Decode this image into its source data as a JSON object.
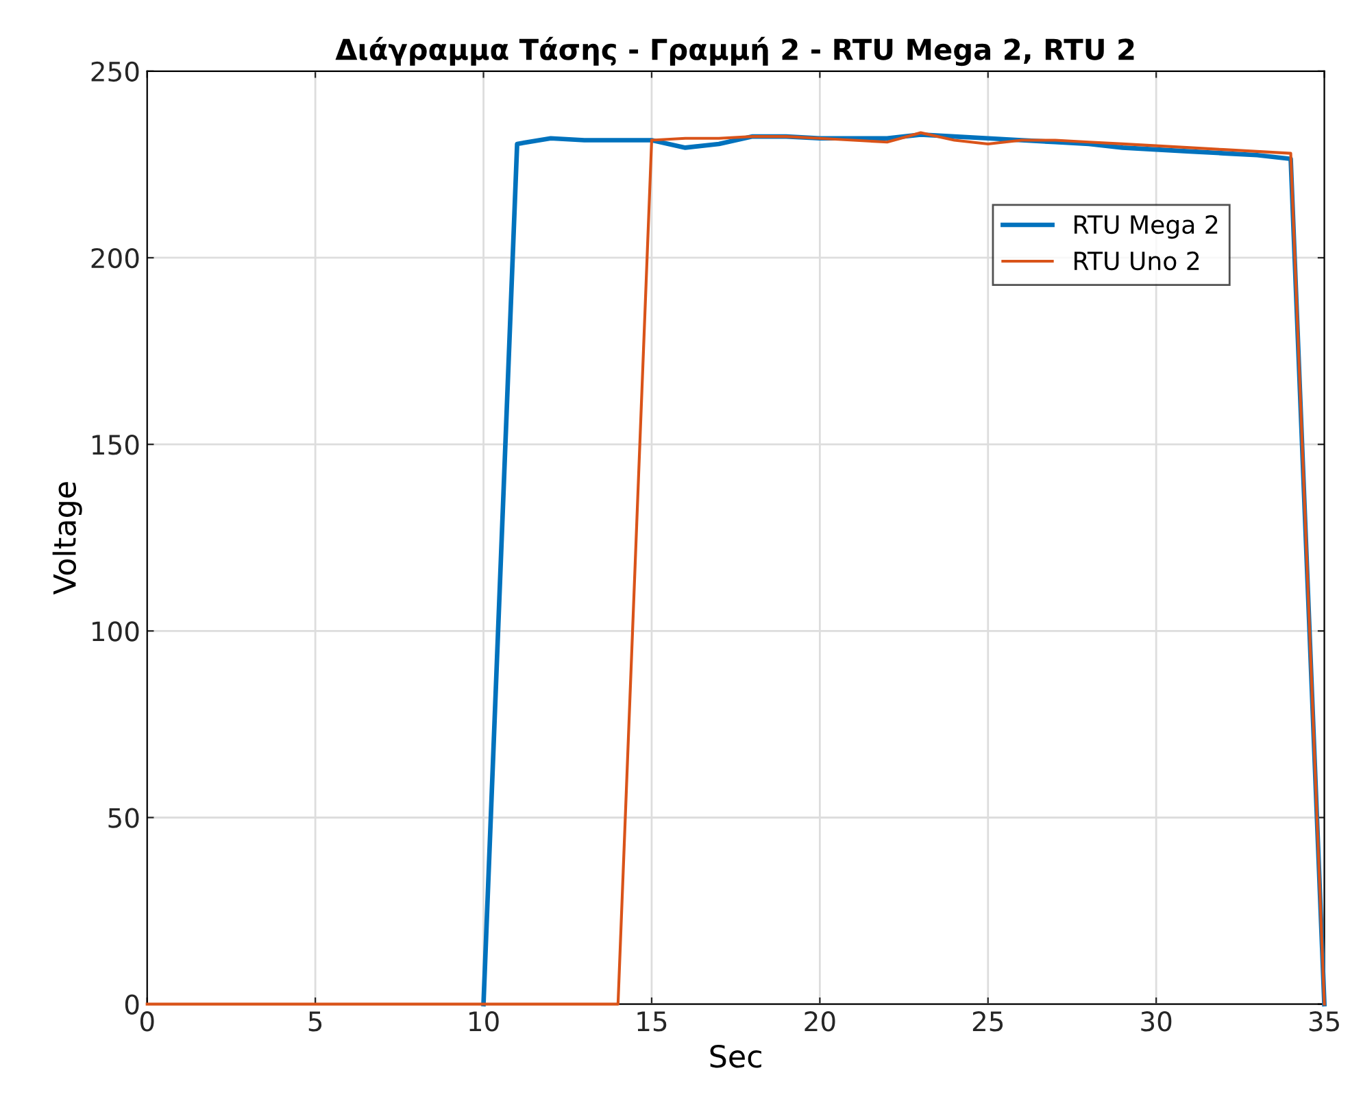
{
  "chart_data": {
    "type": "line",
    "title": "Διάγραμμα Τάσης - Γραμμή 2 - RTU Mega 2, RTU 2",
    "xlabel": "Sec",
    "ylabel": "Voltage",
    "x": [
      0,
      1,
      2,
      3,
      4,
      5,
      6,
      7,
      8,
      9,
      10,
      11,
      12,
      13,
      14,
      15,
      16,
      17,
      18,
      19,
      20,
      21,
      22,
      23,
      24,
      25,
      26,
      27,
      28,
      29,
      30,
      31,
      32,
      33,
      34,
      35
    ],
    "series": [
      {
        "name": "RTU Mega 2",
        "color": "#0072bd",
        "values": [
          null,
          null,
          null,
          null,
          null,
          null,
          null,
          null,
          null,
          null,
          0,
          230.5,
          232,
          231.5,
          231.5,
          231.5,
          229.5,
          230.5,
          232.5,
          232.5,
          232,
          232,
          232,
          233,
          232.5,
          232,
          231.5,
          231,
          230.5,
          229.5,
          229,
          228.5,
          228,
          227.5,
          226.5,
          0
        ]
      },
      {
        "name": "RTU Uno 2",
        "color": "#d95319",
        "values": [
          0,
          0,
          0,
          0,
          0,
          0,
          0,
          0,
          0,
          0,
          0,
          0,
          0,
          0,
          0,
          231.5,
          232,
          232,
          232.5,
          232.5,
          232,
          231.5,
          231,
          233.5,
          231.5,
          230.5,
          231.5,
          231.5,
          231,
          230.5,
          230,
          229.5,
          229,
          228.5,
          228,
          0
        ]
      }
    ],
    "xlim": [
      0,
      35
    ],
    "xticks": [
      0,
      5,
      10,
      15,
      20,
      25,
      30,
      35
    ],
    "ylim": [
      0,
      250
    ],
    "yticks": [
      0,
      50,
      100,
      150,
      200,
      250
    ],
    "grid": true,
    "legend": "top right",
    "line_style": "solid",
    "marker": "none"
  }
}
